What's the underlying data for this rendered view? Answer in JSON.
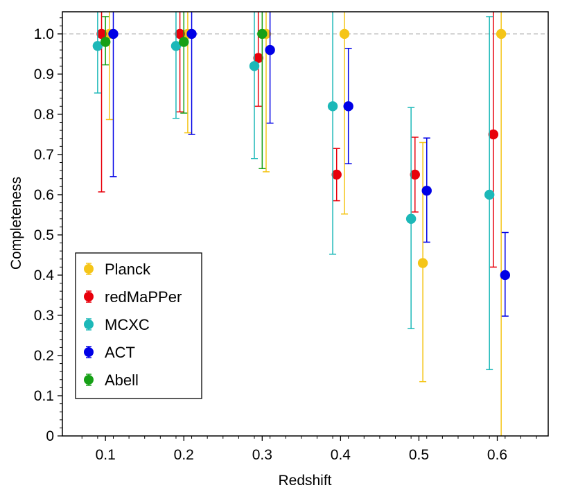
{
  "chart_data": {
    "type": "scatter",
    "title": "",
    "xlabel": "Redshift",
    "ylabel": "Completeness",
    "xlim": [
      0.045,
      0.665
    ],
    "ylim": [
      0,
      1.055
    ],
    "xticks": [
      "0.1",
      "0.2",
      "0.3",
      "0.4",
      "0.5",
      "0.6"
    ],
    "yticks": [
      "0",
      "0.1",
      "0.2",
      "0.3",
      "0.4",
      "0.5",
      "0.6",
      "0.7",
      "0.8",
      "0.9",
      "1.0"
    ],
    "reference_line": 1.0,
    "legend_position": "lower-left",
    "series": [
      {
        "name": "Planck",
        "color": "#f5c518",
        "points": [
          {
            "x": 0.105,
            "y": 1.0,
            "low": 0.787,
            "high": 1.055
          },
          {
            "x": 0.205,
            "y": 1.0,
            "low": 0.754,
            "high": 1.055
          },
          {
            "x": 0.305,
            "y": 1.0,
            "low": 0.657,
            "high": 1.055
          },
          {
            "x": 0.405,
            "y": 1.0,
            "low": 0.552,
            "high": 1.055
          },
          {
            "x": 0.505,
            "y": 0.43,
            "low": 0.135,
            "high": 0.73
          },
          {
            "x": 0.605,
            "y": 1.0,
            "low": 0.0,
            "high": 1.055
          }
        ]
      },
      {
        "name": "redMaPPer",
        "color": "#e8000b",
        "points": [
          {
            "x": 0.095,
            "y": 1.0,
            "low": 0.607,
            "high": 1.055
          },
          {
            "x": 0.195,
            "y": 1.0,
            "low": 0.806,
            "high": 1.055
          },
          {
            "x": 0.295,
            "y": 0.94,
            "low": 0.82,
            "high": 1.055
          },
          {
            "x": 0.395,
            "y": 0.65,
            "low": 0.585,
            "high": 0.715
          },
          {
            "x": 0.495,
            "y": 0.65,
            "low": 0.557,
            "high": 0.743
          },
          {
            "x": 0.595,
            "y": 0.75,
            "low": 0.42,
            "high": 1.055
          }
        ]
      },
      {
        "name": "MCXC",
        "color": "#1cb8b8",
        "points": [
          {
            "x": 0.09,
            "y": 0.97,
            "low": 0.853,
            "high": 1.055
          },
          {
            "x": 0.19,
            "y": 0.97,
            "low": 0.79,
            "high": 1.055
          },
          {
            "x": 0.29,
            "y": 0.92,
            "low": 0.69,
            "high": 1.055
          },
          {
            "x": 0.39,
            "y": 0.82,
            "low": 0.452,
            "high": 1.055
          },
          {
            "x": 0.49,
            "y": 0.54,
            "low": 0.267,
            "high": 0.817
          },
          {
            "x": 0.59,
            "y": 0.6,
            "low": 0.165,
            "high": 1.043
          }
        ]
      },
      {
        "name": "ACT",
        "color": "#0000e6",
        "points": [
          {
            "x": 0.11,
            "y": 1.0,
            "low": 0.645,
            "high": 1.055
          },
          {
            "x": 0.21,
            "y": 1.0,
            "low": 0.75,
            "high": 1.055
          },
          {
            "x": 0.31,
            "y": 0.96,
            "low": 0.778,
            "high": 1.055
          },
          {
            "x": 0.41,
            "y": 0.82,
            "low": 0.677,
            "high": 0.964
          },
          {
            "x": 0.51,
            "y": 0.61,
            "low": 0.482,
            "high": 0.741
          },
          {
            "x": 0.61,
            "y": 0.4,
            "low": 0.298,
            "high": 0.506
          }
        ]
      },
      {
        "name": "Abell",
        "color": "#16a016",
        "points": [
          {
            "x": 0.1,
            "y": 0.98,
            "low": 0.923,
            "high": 1.043
          },
          {
            "x": 0.2,
            "y": 0.98,
            "low": 0.803,
            "high": 1.055
          },
          {
            "x": 0.3,
            "y": 1.0,
            "low": 0.665,
            "high": 1.055
          }
        ]
      }
    ]
  }
}
